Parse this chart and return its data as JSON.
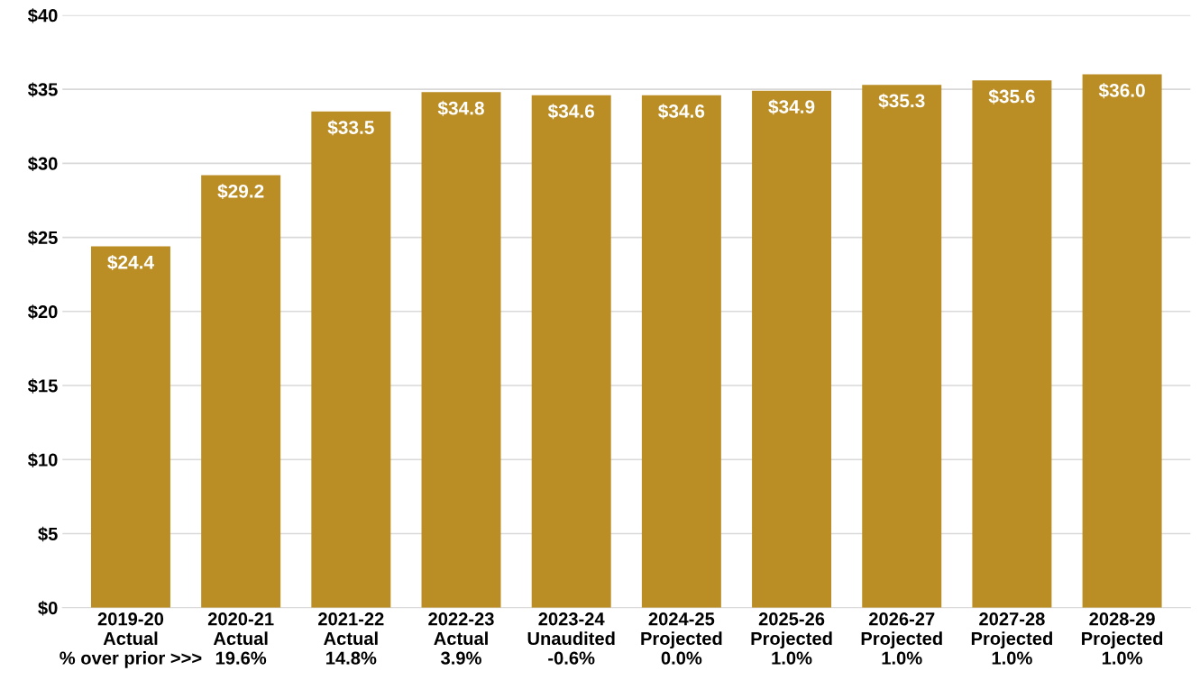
{
  "chart_data": {
    "type": "bar",
    "categories": [
      "2019-20\nActual\n% over prior >>>",
      "2020-21\nActual\n19.6%",
      "2021-22\nActual\n14.8%",
      "2022-23\nActual\n3.9%",
      "2023-24\nUnaudited\n-0.6%",
      "2024-25\nProjected\n0.0%",
      "2025-26\nProjected\n1.0%",
      "2026-27\nProjected\n1.0%",
      "2027-28\nProjected\n1.0%",
      "2028-29\nProjected\n1.0%"
    ],
    "values": [
      24.4,
      29.2,
      33.5,
      34.8,
      34.6,
      34.6,
      34.9,
      35.3,
      35.6,
      36.0
    ],
    "value_labels": [
      "$24.4",
      "$29.2",
      "$33.5",
      "$34.8",
      "$34.6",
      "$34.6",
      "$34.9",
      "$35.3",
      "$35.6",
      "$36.0"
    ],
    "color": "#bb8e25",
    "ylim": [
      0,
      40
    ],
    "yticks": [
      {
        "value": 0,
        "label": "$0"
      },
      {
        "value": 5,
        "label": "$5"
      },
      {
        "value": 10,
        "label": "$10"
      },
      {
        "value": 15,
        "label": "$15"
      },
      {
        "value": 20,
        "label": "$20"
      },
      {
        "value": 25,
        "label": "$25"
      },
      {
        "value": 30,
        "label": "$30"
      },
      {
        "value": 35,
        "label": "$35"
      },
      {
        "value": 40,
        "label": "$40"
      }
    ],
    "grid": "y",
    "legend": false
  }
}
